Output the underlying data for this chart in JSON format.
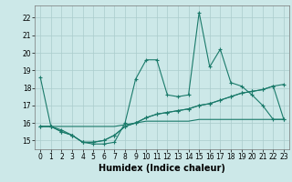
{
  "xlabel": "Humidex (Indice chaleur)",
  "x": [
    0,
    1,
    2,
    3,
    4,
    5,
    6,
    7,
    8,
    9,
    10,
    11,
    12,
    13,
    14,
    15,
    16,
    17,
    18,
    19,
    20,
    21,
    22,
    23
  ],
  "y_main": [
    18.6,
    15.8,
    15.6,
    15.3,
    14.9,
    14.8,
    14.8,
    14.9,
    16.0,
    18.5,
    19.6,
    19.6,
    17.6,
    17.5,
    17.6,
    22.3,
    19.2,
    20.2,
    18.3,
    18.1,
    17.6,
    17.0,
    16.2,
    16.2
  ],
  "y_line2": [
    15.8,
    15.8,
    15.5,
    15.3,
    14.9,
    14.9,
    15.0,
    15.3,
    15.8,
    16.0,
    16.3,
    16.5,
    16.6,
    16.7,
    16.8,
    17.0,
    17.1,
    17.3,
    17.5,
    17.7,
    17.8,
    17.9,
    18.1,
    16.2
  ],
  "y_line3": [
    15.8,
    15.8,
    15.5,
    15.3,
    14.9,
    14.9,
    15.0,
    15.3,
    15.8,
    16.0,
    16.3,
    16.5,
    16.6,
    16.7,
    16.8,
    17.0,
    17.1,
    17.3,
    17.5,
    17.7,
    17.8,
    17.9,
    18.1,
    18.2
  ],
  "y_flat": [
    15.8,
    15.8,
    15.8,
    15.8,
    15.8,
    15.8,
    15.8,
    15.8,
    15.9,
    16.0,
    16.1,
    16.1,
    16.1,
    16.1,
    16.1,
    16.2,
    16.2,
    16.2,
    16.2,
    16.2,
    16.2,
    16.2,
    16.2,
    16.2
  ],
  "color": "#1a7a6a",
  "background": "#cce8e8",
  "grid_color": "#aacccc",
  "ylim": [
    14.5,
    22.7
  ],
  "yticks": [
    15,
    16,
    17,
    18,
    19,
    20,
    21,
    22
  ],
  "xticks": [
    0,
    1,
    2,
    3,
    4,
    5,
    6,
    7,
    8,
    9,
    10,
    11,
    12,
    13,
    14,
    15,
    16,
    17,
    18,
    19,
    20,
    21,
    22,
    23
  ],
  "tick_fontsize": 5.5,
  "label_fontsize": 7.0
}
